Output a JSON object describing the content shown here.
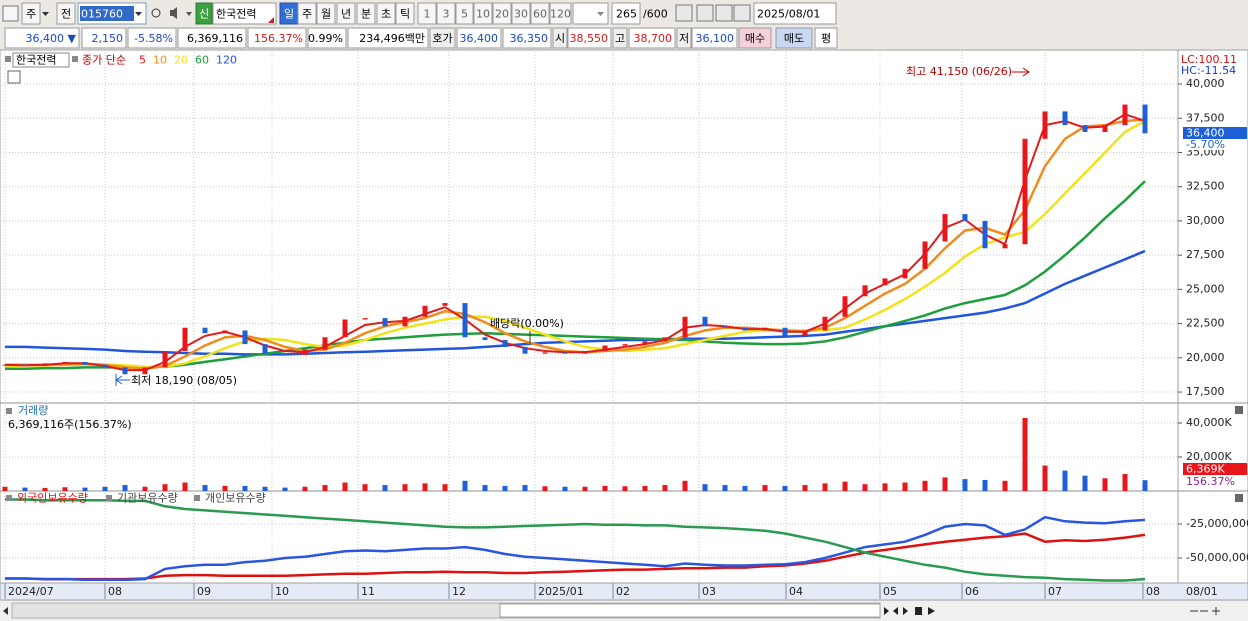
{
  "toolbar": {
    "code_type": "주",
    "market": "전",
    "code": "015760",
    "badge": "신",
    "name": "한국전력",
    "periods": [
      "일",
      "주",
      "월",
      "년",
      "분",
      "초",
      "틱"
    ],
    "intervals": [
      "1",
      "3",
      "5",
      "10",
      "20",
      "30",
      "60",
      "120"
    ],
    "count": "265",
    "max": "/600",
    "date": "2025/08/01"
  },
  "quote": {
    "price": "36,400 ▼",
    "change": "2,150",
    "change_rate": "-5.58%",
    "volume": "6,369,116",
    "volume_ratio": "156.37%",
    "turnover": "0.99%",
    "amount": "234,496백만",
    "bid_label": "호가",
    "ask": "36,400",
    "bid": "36,350",
    "open_label": "시",
    "open": "38,550",
    "high_label": "고",
    "high": "38,700",
    "low_label": "저",
    "low": "36,100",
    "buy": "매수",
    "sell": "매도",
    "avg": "평"
  },
  "chart": {
    "name": "한국전력",
    "xlim": [
      -0.25,
      58.65
    ],
    "xticks": [
      {
        "value": 0,
        "label": "2024/07"
      },
      {
        "value": 5,
        "label": "08"
      },
      {
        "value": 9.45,
        "label": "09"
      },
      {
        "value": 13.35,
        "label": "10"
      },
      {
        "value": 17.65,
        "label": "11"
      },
      {
        "value": 22.2,
        "label": "12"
      },
      {
        "value": 26.5,
        "label": "2025/01"
      },
      {
        "value": 30.4,
        "label": "02"
      },
      {
        "value": 34.7,
        "label": "03"
      },
      {
        "value": 39.05,
        "label": "04"
      },
      {
        "value": 43.75,
        "label": "05"
      },
      {
        "value": 47.85,
        "label": "06"
      },
      {
        "value": 52,
        "label": "07"
      },
      {
        "value": 56.9,
        "label": "08"
      }
    ],
    "end_label": "08/01",
    "price": {
      "ma_label": "종가 단순",
      "up_color": "#e8161b",
      "down_color": "#1e5fd8",
      "close": [
        19500,
        19400,
        19600,
        19700,
        19500,
        19300,
        18800,
        19300,
        20500,
        22200,
        21800,
        22000,
        21000,
        20300,
        20200,
        20600,
        21500,
        22800,
        22900,
        22300,
        23000,
        23800,
        24000,
        21500,
        21300,
        20800,
        20300,
        20400,
        20300,
        20500,
        20900,
        21000,
        21200,
        21500,
        23000,
        22300,
        22200,
        22000,
        22200,
        21600,
        22000,
        23000,
        24500,
        25300,
        25800,
        26500,
        28500,
        30500,
        30000,
        28000,
        28300,
        36000,
        38000,
        37000,
        36500,
        37000,
        38500,
        36400
      ],
      "ma": [
        {
          "name": "5",
          "color": "#e31a1c",
          "values": [
            19500,
            19450,
            19500,
            19600,
            19600,
            19400,
            19100,
            19100,
            19700,
            20800,
            21600,
            21900,
            21500,
            20900,
            20500,
            20400,
            20800,
            21600,
            22400,
            22600,
            22700,
            23200,
            23700,
            22800,
            21700,
            21100,
            20700,
            20500,
            20400,
            20400,
            20600,
            20800,
            21000,
            21300,
            22200,
            22400,
            22300,
            22100,
            22100,
            21900,
            21900,
            22500,
            23600,
            24700,
            25400,
            26100,
            27600,
            29500,
            30100,
            29000,
            28300,
            33000,
            37000,
            37300,
            36800,
            36900,
            37800,
            37300
          ]
        },
        {
          "name": "10",
          "color": "#f08c1e",
          "values": [
            19500,
            19500,
            19480,
            19520,
            19580,
            19500,
            19300,
            19200,
            19400,
            20100,
            20900,
            21500,
            21600,
            21300,
            20800,
            20500,
            20600,
            21100,
            21800,
            22300,
            22600,
            22900,
            23400,
            23200,
            22600,
            21800,
            21200,
            20800,
            20500,
            20400,
            20500,
            20600,
            20800,
            21100,
            21600,
            22000,
            22200,
            22200,
            22100,
            22000,
            21900,
            22200,
            22900,
            23800,
            24700,
            25400,
            26500,
            28000,
            29300,
            29500,
            29000,
            30800,
            34000,
            36000,
            36900,
            37000,
            37300,
            37400
          ]
        },
        {
          "name": "20",
          "color": "#f2e21c",
          "values": [
            19400,
            19450,
            19450,
            19480,
            19500,
            19500,
            19450,
            19350,
            19350,
            19600,
            20100,
            20700,
            21200,
            21400,
            21300,
            21000,
            20800,
            20900,
            21300,
            21800,
            22200,
            22500,
            22800,
            23000,
            23000,
            22700,
            22200,
            21700,
            21200,
            20800,
            20600,
            20500,
            20600,
            20700,
            21000,
            21300,
            21600,
            21900,
            22000,
            22000,
            22000,
            22000,
            22200,
            22800,
            23500,
            24300,
            25200,
            26200,
            27400,
            28300,
            28800,
            29200,
            30500,
            32000,
            33500,
            35000,
            36500,
            37300
          ]
        },
        {
          "name": "60",
          "color": "#1e9e3c",
          "values": [
            19200,
            19200,
            19250,
            19250,
            19300,
            19300,
            19300,
            19300,
            19350,
            19500,
            19700,
            19900,
            20100,
            20300,
            20500,
            20700,
            20900,
            21100,
            21300,
            21400,
            21500,
            21600,
            21700,
            21750,
            21800,
            21750,
            21700,
            21650,
            21600,
            21550,
            21500,
            21450,
            21400,
            21350,
            21300,
            21200,
            21100,
            21050,
            21000,
            21000,
            21050,
            21200,
            21500,
            21900,
            22300,
            22700,
            23100,
            23600,
            24000,
            24300,
            24600,
            25300,
            26300,
            27500,
            28800,
            30200,
            31500,
            32900
          ]
        },
        {
          "name": "120",
          "color": "#2255dd",
          "values": [
            20800,
            20800,
            20750,
            20700,
            20650,
            20600,
            20500,
            20450,
            20400,
            20350,
            20300,
            20300,
            20250,
            20250,
            20250,
            20300,
            20350,
            20400,
            20450,
            20500,
            20550,
            20600,
            20650,
            20700,
            20800,
            20900,
            21000,
            21100,
            21150,
            21200,
            21250,
            21300,
            21300,
            21350,
            21400,
            21400,
            21400,
            21450,
            21500,
            21550,
            21600,
            21700,
            21900,
            22100,
            22300,
            22500,
            22700,
            22900,
            23100,
            23300,
            23600,
            24000,
            24700,
            25400,
            26000,
            26600,
            27200,
            27800
          ]
        }
      ],
      "ylim": [
        16700,
        42340
      ],
      "yticks": [
        {
          "value": 17500,
          "label": "17,500"
        },
        {
          "value": 20000,
          "label": "20,000"
        },
        {
          "value": 22500,
          "label": "22,500"
        },
        {
          "value": 25000,
          "label": "25,000"
        },
        {
          "value": 27500,
          "label": "27,500"
        },
        {
          "value": 30000,
          "label": "30,000"
        },
        {
          "value": 32500,
          "label": "32,500"
        },
        {
          "value": 35000,
          "label": "35,000"
        },
        {
          "value": 37500,
          "label": "37,500"
        },
        {
          "value": 40000,
          "label": "40,000"
        }
      ],
      "high_note": "최고 41,150 (06/26)",
      "low_note": "최저 18,190 (08/05)",
      "dividend_note": "배당락(0.00%)",
      "lc": "LC:100.11",
      "hc": "HC:-11.54",
      "last": "36,400",
      "last_change": "-5.70%"
    },
    "volume": {
      "title": "거래량",
      "summary": "6,369,116주(156.37%)",
      "values": [
        2500,
        2000,
        1800,
        2200,
        2000,
        2500,
        3500,
        2500,
        4000,
        5000,
        3500,
        3000,
        3000,
        2500,
        2000,
        2500,
        3500,
        5000,
        4000,
        3500,
        4000,
        4500,
        4000,
        6000,
        3500,
        3000,
        3500,
        2800,
        2500,
        2500,
        3000,
        2800,
        3000,
        3500,
        6000,
        4000,
        3500,
        3000,
        3500,
        3000,
        3500,
        4500,
        5500,
        4000,
        4500,
        5000,
        6000,
        8000,
        7000,
        6500,
        6000,
        43000,
        15000,
        12000,
        9000,
        7500,
        10000,
        6369
      ],
      "ylim": [
        0,
        51200
      ],
      "yticks": [
        {
          "value": 20000,
          "label": "20,000K"
        },
        {
          "value": 40000,
          "label": "40,000K"
        }
      ],
      "last": "6,369K",
      "last_ratio": "156.37%"
    },
    "holdings": {
      "series": [
        {
          "name": "외국인보유수량",
          "color": "#e01010",
          "values": [
            -65000000,
            -65000000,
            -65500000,
            -65500000,
            -65500000,
            -65500000,
            -65500000,
            -65000000,
            -63000000,
            -62500000,
            -62500000,
            -63000000,
            -63000000,
            -63000000,
            -63000000,
            -62500000,
            -62000000,
            -61500000,
            -61500000,
            -61000000,
            -60500000,
            -60500000,
            -60000000,
            -60500000,
            -60500000,
            -61000000,
            -61000000,
            -60500000,
            -60000000,
            -59500000,
            -59000000,
            -58500000,
            -58500000,
            -58000000,
            -57500000,
            -57500000,
            -57000000,
            -57000000,
            -56000000,
            -55500000,
            -54000000,
            -52000000,
            -49000000,
            -46000000,
            -44000000,
            -42000000,
            -40000000,
            -38000000,
            -36500000,
            -35000000,
            -34000000,
            -32000000,
            -38000000,
            -37000000,
            -37500000,
            -36500000,
            -35000000,
            -33000000
          ]
        },
        {
          "name": "기관보유수량",
          "color": "#2a55e0",
          "values": [
            -65000000,
            -65000000,
            -65500000,
            -65500000,
            -66000000,
            -66000000,
            -66000000,
            -65500000,
            -58000000,
            -56000000,
            -55000000,
            -55000000,
            -53000000,
            -52000000,
            -50000000,
            -49000000,
            -47000000,
            -45000000,
            -44500000,
            -45000000,
            -44000000,
            -43000000,
            -43000000,
            -42000000,
            -44000000,
            -47000000,
            -49000000,
            -50000000,
            -51000000,
            -52000000,
            -53000000,
            -54000000,
            -55000000,
            -56000000,
            -54000000,
            -55000000,
            -55500000,
            -55500000,
            -55000000,
            -54500000,
            -53000000,
            -50000000,
            -46000000,
            -42000000,
            -40000000,
            -38000000,
            -33000000,
            -27000000,
            -25000000,
            -26000000,
            -33000000,
            -29000000,
            -20000000,
            -23000000,
            -24000000,
            -24500000,
            -23000000,
            -22000000
          ]
        },
        {
          "name": "개인보유수량",
          "color": "#2a9a50",
          "values": [
            -7000000,
            -7000000,
            -7500000,
            -7500000,
            -7500000,
            -7500000,
            -8000000,
            -8000000,
            -12000000,
            -14000000,
            -15000000,
            -16000000,
            -17000000,
            -18000000,
            -19000000,
            -20000000,
            -21000000,
            -22000000,
            -23000000,
            -24000000,
            -25000000,
            -26000000,
            -27000000,
            -27500000,
            -27500000,
            -27000000,
            -26500000,
            -26000000,
            -25500000,
            -25000000,
            -25500000,
            -25500000,
            -26000000,
            -26000000,
            -27000000,
            -27500000,
            -28000000,
            -29000000,
            -30000000,
            -32000000,
            -35000000,
            -38000000,
            -42000000,
            -46000000,
            -49000000,
            -52000000,
            -55000000,
            -57000000,
            -60000000,
            -62000000,
            -63000000,
            -64000000,
            -64500000,
            -65500000,
            -66000000,
            -66500000,
            -66500000,
            -65500000
          ]
        }
      ],
      "ylim": [
        -67600000,
        -1500000
      ],
      "yticks": [
        {
          "value": -50000000,
          "label": "-50,000,000"
        },
        {
          "value": -25000000,
          "label": "-25,000,000"
        }
      ]
    }
  }
}
